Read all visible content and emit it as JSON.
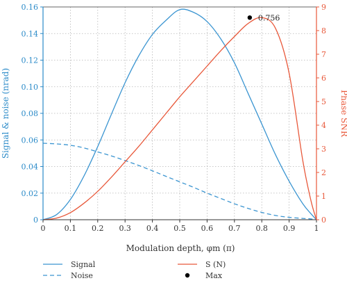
{
  "chart_data": {
    "type": "line",
    "xlabel": "Modulation depth, φm (π)",
    "ylabel_left": "Signal & noise (nrad)",
    "ylabel_right": "Phase SNR",
    "xlim": [
      0,
      1
    ],
    "ylim_left": [
      0,
      0.16
    ],
    "ylim_right": [
      0,
      9
    ],
    "x_ticks": [
      "0",
      "0.1",
      "0.2",
      "0.3",
      "0.4",
      "0.5",
      "0.6",
      "0.7",
      "0.8",
      "0.9",
      "1"
    ],
    "y_left_ticks": [
      "0",
      "0.02",
      "0.04",
      "0.06",
      "0.08",
      "0.10",
      "0.12",
      "0.14",
      "0.16"
    ],
    "y_right_ticks": [
      "0",
      "1",
      "2",
      "3",
      "4",
      "5",
      "6",
      "7",
      "8",
      "9"
    ],
    "grid": true,
    "colors": {
      "left_axis": "#2a8ac8",
      "right_axis": "#e8583a",
      "signal": "#3b95d1",
      "noise": "#3b95d1",
      "snr": "#e8583a",
      "max": "#000000"
    },
    "x": [
      0,
      0.05,
      0.1,
      0.15,
      0.2,
      0.25,
      0.3,
      0.35,
      0.4,
      0.45,
      0.5,
      0.55,
      0.6,
      0.65,
      0.7,
      0.75,
      0.8,
      0.85,
      0.9,
      0.95,
      0.98,
      1.0
    ],
    "series": [
      {
        "name": "Signal",
        "axis": "left",
        "style": "solid",
        "values": [
          0,
          0.0039,
          0.0152,
          0.033,
          0.055,
          0.0793,
          0.103,
          0.1232,
          0.1393,
          0.15,
          0.158,
          0.156,
          0.149,
          0.136,
          0.118,
          0.095,
          0.072,
          0.049,
          0.029,
          0.012,
          0.0045,
          0
        ]
      },
      {
        "name": "Noise",
        "axis": "left",
        "style": "dashed",
        "values": [
          0.0575,
          0.057,
          0.056,
          0.054,
          0.051,
          0.048,
          0.0445,
          0.0408,
          0.0368,
          0.0326,
          0.0285,
          0.0244,
          0.02,
          0.016,
          0.012,
          0.0085,
          0.0055,
          0.0032,
          0.0018,
          0.001,
          0.0006,
          0
        ]
      },
      {
        "name": "S (N)",
        "axis": "right",
        "style": "solid",
        "values": [
          0,
          0.07,
          0.3,
          0.7,
          1.2,
          1.8,
          2.45,
          3.1,
          3.8,
          4.5,
          5.2,
          5.85,
          6.5,
          7.15,
          7.75,
          8.3,
          8.55,
          8.1,
          6.2,
          2.5,
          0.8,
          0
        ]
      }
    ],
    "max_point": {
      "name": "Max",
      "x": 0.756,
      "y": 8.55,
      "label": "0.756"
    }
  }
}
